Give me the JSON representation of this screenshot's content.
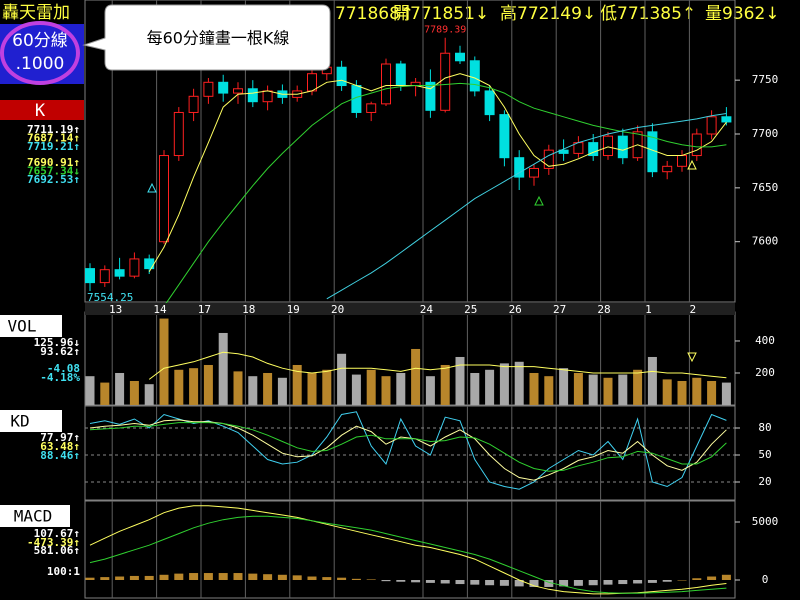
{
  "header": {
    "title": "轟天雷加",
    "period": "60分線",
    "ratio": ".1000",
    "quote": [
      "771868↑",
      "開771851↓",
      "高772149↓",
      "低771385↑",
      "量9362↓"
    ]
  },
  "tooltip": "每60分鐘畫一根K線",
  "chart_data": [
    {
      "type": "candlestick",
      "label": "K",
      "categories": [
        null,
        null,
        "13",
        null,
        null,
        "14",
        null,
        null,
        "17",
        null,
        null,
        "18",
        null,
        null,
        "19",
        null,
        null,
        "20",
        null,
        null,
        null,
        null,
        null,
        "24",
        null,
        null,
        "25",
        null,
        null,
        "26",
        null,
        null,
        "27",
        null,
        null,
        "28",
        null,
        null,
        "1",
        null,
        null,
        "2",
        null,
        null
      ],
      "ohlc": [
        [
          7575,
          7580,
          7554.25,
          7562
        ],
        [
          7562,
          7578,
          7558,
          7574
        ],
        [
          7574,
          7585,
          7565,
          7568
        ],
        [
          7568,
          7590,
          7566,
          7584
        ],
        [
          7584,
          7588,
          7570,
          7575
        ],
        [
          7600,
          7685,
          7598,
          7680
        ],
        [
          7680,
          7725,
          7675,
          7720
        ],
        [
          7720,
          7742,
          7712,
          7735
        ],
        [
          7735,
          7752,
          7728,
          7748
        ],
        [
          7748,
          7755,
          7730,
          7738
        ],
        [
          7738,
          7748,
          7728,
          7742
        ],
        [
          7742,
          7750,
          7725,
          7730
        ],
        [
          7730,
          7745,
          7722,
          7740
        ],
        [
          7740,
          7746,
          7728,
          7734
        ],
        [
          7734,
          7745,
          7730,
          7740
        ],
        [
          7740,
          7760,
          7736,
          7756
        ],
        [
          7756,
          7772,
          7750,
          7762
        ],
        [
          7762,
          7768,
          7740,
          7745
        ],
        [
          7745,
          7750,
          7715,
          7720
        ],
        [
          7720,
          7730,
          7712,
          7728
        ],
        [
          7728,
          7770,
          7726,
          7765
        ],
        [
          7765,
          7768,
          7740,
          7745
        ],
        [
          7745,
          7752,
          7735,
          7748
        ],
        [
          7748,
          7760,
          7715,
          7722
        ],
        [
          7722,
          7789.39,
          7720,
          7775
        ],
        [
          7775,
          7782,
          7765,
          7768
        ],
        [
          7768,
          7772,
          7735,
          7740
        ],
        [
          7740,
          7745,
          7712,
          7718
        ],
        [
          7718,
          7722,
          7670,
          7678
        ],
        [
          7678,
          7685,
          7648,
          7660
        ],
        [
          7660,
          7672,
          7652,
          7668
        ],
        [
          7668,
          7690,
          7662,
          7685
        ],
        [
          7685,
          7695,
          7675,
          7682
        ],
        [
          7682,
          7698,
          7678,
          7692
        ],
        [
          7692,
          7700,
          7675,
          7680
        ],
        [
          7680,
          7702,
          7676,
          7698
        ],
        [
          7698,
          7705,
          7672,
          7678
        ],
        [
          7678,
          7708,
          7675,
          7702
        ],
        [
          7702,
          7710,
          7660,
          7665
        ],
        [
          7665,
          7675,
          7658,
          7670
        ],
        [
          7670,
          7685,
          7665,
          7680
        ],
        [
          7680,
          7705,
          7675,
          7700
        ],
        [
          7700,
          7722,
          7695,
          7716
        ],
        [
          7716,
          7725,
          7708,
          7711.19
        ]
      ],
      "up_color": "#ff2020",
      "down_color": "#00e0e0",
      "series": [
        {
          "color": "#ffff60",
          "values": [
            null,
            null,
            null,
            null,
            7572,
            7595,
            7625,
            7660,
            7692,
            7725,
            7737,
            7738,
            7740,
            7737,
            7737,
            7740,
            7748,
            7750,
            7745,
            7740,
            7745,
            7745,
            7745,
            7742,
            7752,
            7756,
            7752,
            7745,
            7725,
            7700,
            7680,
            7670,
            7672,
            7677,
            7683,
            7688,
            7685,
            7690,
            7685,
            7680,
            7680,
            7685,
            7693,
            7711
          ]
        },
        {
          "color": "#30d030",
          "values": [
            null,
            null,
            null,
            null,
            null,
            7540,
            7560,
            7580,
            7600,
            7618,
            7635,
            7652,
            7668,
            7682,
            7695,
            7708,
            7718,
            7728,
            7734,
            7738,
            7742,
            7744,
            7745,
            7745,
            7746,
            7747,
            7746,
            7743,
            7738,
            7730,
            7724,
            7720,
            7716,
            7712,
            7708,
            7705,
            7702,
            7700,
            7697,
            7693,
            7690,
            7688,
            7688,
            7690
          ]
        },
        {
          "color": "#40d0e0",
          "values": [
            null,
            null,
            null,
            null,
            null,
            null,
            null,
            null,
            null,
            null,
            null,
            null,
            null,
            null,
            null,
            null,
            7547,
            7555,
            7563,
            7571,
            7580,
            7590,
            7600,
            7610,
            7620,
            7630,
            7640,
            7648,
            7656,
            7664,
            7672,
            7680,
            7686,
            7692,
            7696,
            7700,
            7703,
            7706,
            7708,
            7710,
            7712,
            7714,
            7717,
            7719
          ]
        }
      ],
      "ylim": [
        7544,
        7804
      ],
      "yticks": [
        7600,
        7650,
        7700,
        7750
      ],
      "readouts": [
        {
          "text": "7711.19↑",
          "color": "#ffffff"
        },
        {
          "text": "7687.14↑",
          "color": "#ffff60"
        },
        {
          "text": "7719.21↑",
          "color": "#40e0f0"
        },
        {
          "text": "7690.91↑",
          "color": "#ffff60"
        },
        {
          "text": "7657.34↓",
          "color": "#30d030"
        },
        {
          "text": "7692.53↑",
          "color": "#40e0f0"
        }
      ]
    },
    {
      "type": "volume",
      "label": "VOL",
      "values": [
        180,
        140,
        200,
        150,
        130,
        540,
        220,
        230,
        250,
        450,
        210,
        180,
        200,
        170,
        250,
        200,
        220,
        320,
        190,
        220,
        180,
        200,
        350,
        180,
        250,
        300,
        200,
        220,
        260,
        270,
        200,
        180,
        230,
        200,
        190,
        170,
        190,
        220,
        300,
        160,
        150,
        170,
        150,
        140
      ],
      "up_color": "#b8862b",
      "down_color": "#a8a8a8",
      "series": [
        {
          "color": "#ffff60",
          "values": [
            null,
            null,
            null,
            null,
            160,
            230,
            250,
            270,
            300,
            330,
            320,
            300,
            260,
            230,
            210,
            200,
            210,
            230,
            230,
            230,
            220,
            210,
            230,
            220,
            230,
            250,
            250,
            250,
            240,
            240,
            240,
            230,
            220,
            210,
            200,
            200,
            200,
            200,
            210,
            200,
            200,
            190,
            180,
            170
          ]
        }
      ],
      "ylim": [
        0,
        556
      ],
      "yticks": [
        200,
        400
      ],
      "readouts": [
        {
          "text": "125.96↓",
          "color": "#ffffff"
        },
        {
          "text": "93.62↑",
          "color": "#ffffff"
        },
        {
          "text": "-4.08",
          "color": "#40e0f0"
        },
        {
          "text": "-4.18%",
          "color": "#40e0f0"
        }
      ]
    },
    {
      "type": "line",
      "label": "KD",
      "series": [
        {
          "color": "#40d0f0",
          "values": [
            85,
            88,
            84,
            90,
            80,
            95,
            90,
            85,
            88,
            82,
            75,
            60,
            45,
            40,
            42,
            50,
            70,
            95,
            98,
            60,
            40,
            90,
            60,
            50,
            92,
            88,
            45,
            20,
            15,
            12,
            20,
            35,
            45,
            55,
            50,
            65,
            45,
            90,
            20,
            15,
            25,
            60,
            95,
            88.46
          ]
        },
        {
          "color": "#ffffa0",
          "values": [
            80,
            82,
            83,
            85,
            83,
            88,
            89,
            87,
            87,
            85,
            80,
            72,
            62,
            52,
            48,
            49,
            58,
            72,
            82,
            76,
            62,
            70,
            68,
            60,
            70,
            78,
            68,
            50,
            35,
            25,
            22,
            28,
            35,
            44,
            48,
            55,
            52,
            65,
            50,
            38,
            33,
            42,
            62,
            77.97
          ]
        },
        {
          "color": "#30d030",
          "values": [
            78,
            79,
            80,
            82,
            82,
            84,
            86,
            86,
            86,
            85,
            82,
            78,
            72,
            65,
            58,
            54,
            55,
            62,
            70,
            72,
            68,
            68,
            68,
            65,
            66,
            70,
            69,
            62,
            52,
            42,
            35,
            32,
            33,
            38,
            42,
            47,
            48,
            54,
            52,
            46,
            40,
            40,
            48,
            63.48
          ]
        }
      ],
      "ylim": [
        0,
        100
      ],
      "yticks": [
        20,
        50,
        80
      ],
      "grid": true,
      "readouts": [
        {
          "text": "77.97↑",
          "color": "#ffffff"
        },
        {
          "text": "63.48↑",
          "color": "#ffff60"
        },
        {
          "text": "88.46↑",
          "color": "#40e0f0"
        }
      ]
    },
    {
      "type": "macd",
      "label": "MACD",
      "values": [
        200,
        250,
        300,
        350,
        350,
        450,
        550,
        600,
        600,
        600,
        600,
        550,
        500,
        450,
        400,
        300,
        250,
        200,
        100,
        50,
        -100,
        -150,
        -200,
        -250,
        -300,
        -350,
        -400,
        -450,
        -500,
        -550,
        -600,
        -600,
        -550,
        -500,
        -450,
        -400,
        -350,
        -300,
        -250,
        -150,
        0,
        150,
        300,
        450
      ],
      "up_color": "#b8862b",
      "down_color": "#a8a8a8",
      "series": [
        {
          "color": "#ffff60",
          "values": [
            3000,
            3600,
            4200,
            4700,
            5200,
            5800,
            6200,
            6400,
            6400,
            6300,
            6200,
            6000,
            5800,
            5600,
            5400,
            5100,
            4800,
            4500,
            4200,
            3900,
            3600,
            3300,
            3000,
            2800,
            2500,
            2200,
            1800,
            1200,
            600,
            0,
            -500,
            -800,
            -1000,
            -1100,
            -1200,
            -1200,
            -1150,
            -1100,
            -1000,
            -900,
            -800,
            -650,
            -450,
            -300
          ]
        },
        {
          "color": "#30d030",
          "values": [
            1500,
            1800,
            2200,
            2600,
            3000,
            3500,
            4000,
            4500,
            4900,
            5200,
            5400,
            5500,
            5500,
            5400,
            5300,
            5100,
            4900,
            4700,
            4500,
            4300,
            4000,
            3700,
            3400,
            3100,
            2800,
            2500,
            2200,
            1800,
            1300,
            800,
            300,
            -200,
            -500,
            -800,
            -1000,
            -1100,
            -1150,
            -1150,
            -1100,
            -1050,
            -1000,
            -900,
            -800,
            -700
          ]
        }
      ],
      "ylim": [
        -1552,
        6466
      ],
      "yticks": [
        0,
        5000
      ],
      "readouts": [
        {
          "text": "107.67↑",
          "color": "#ffffff"
        },
        {
          "text": "-473.39↑",
          "color": "#ffff60"
        },
        {
          "text": "581.06↑",
          "color": "#ffffff"
        },
        {
          "text": "100:1",
          "color": "#ffffff"
        }
      ]
    }
  ]
}
